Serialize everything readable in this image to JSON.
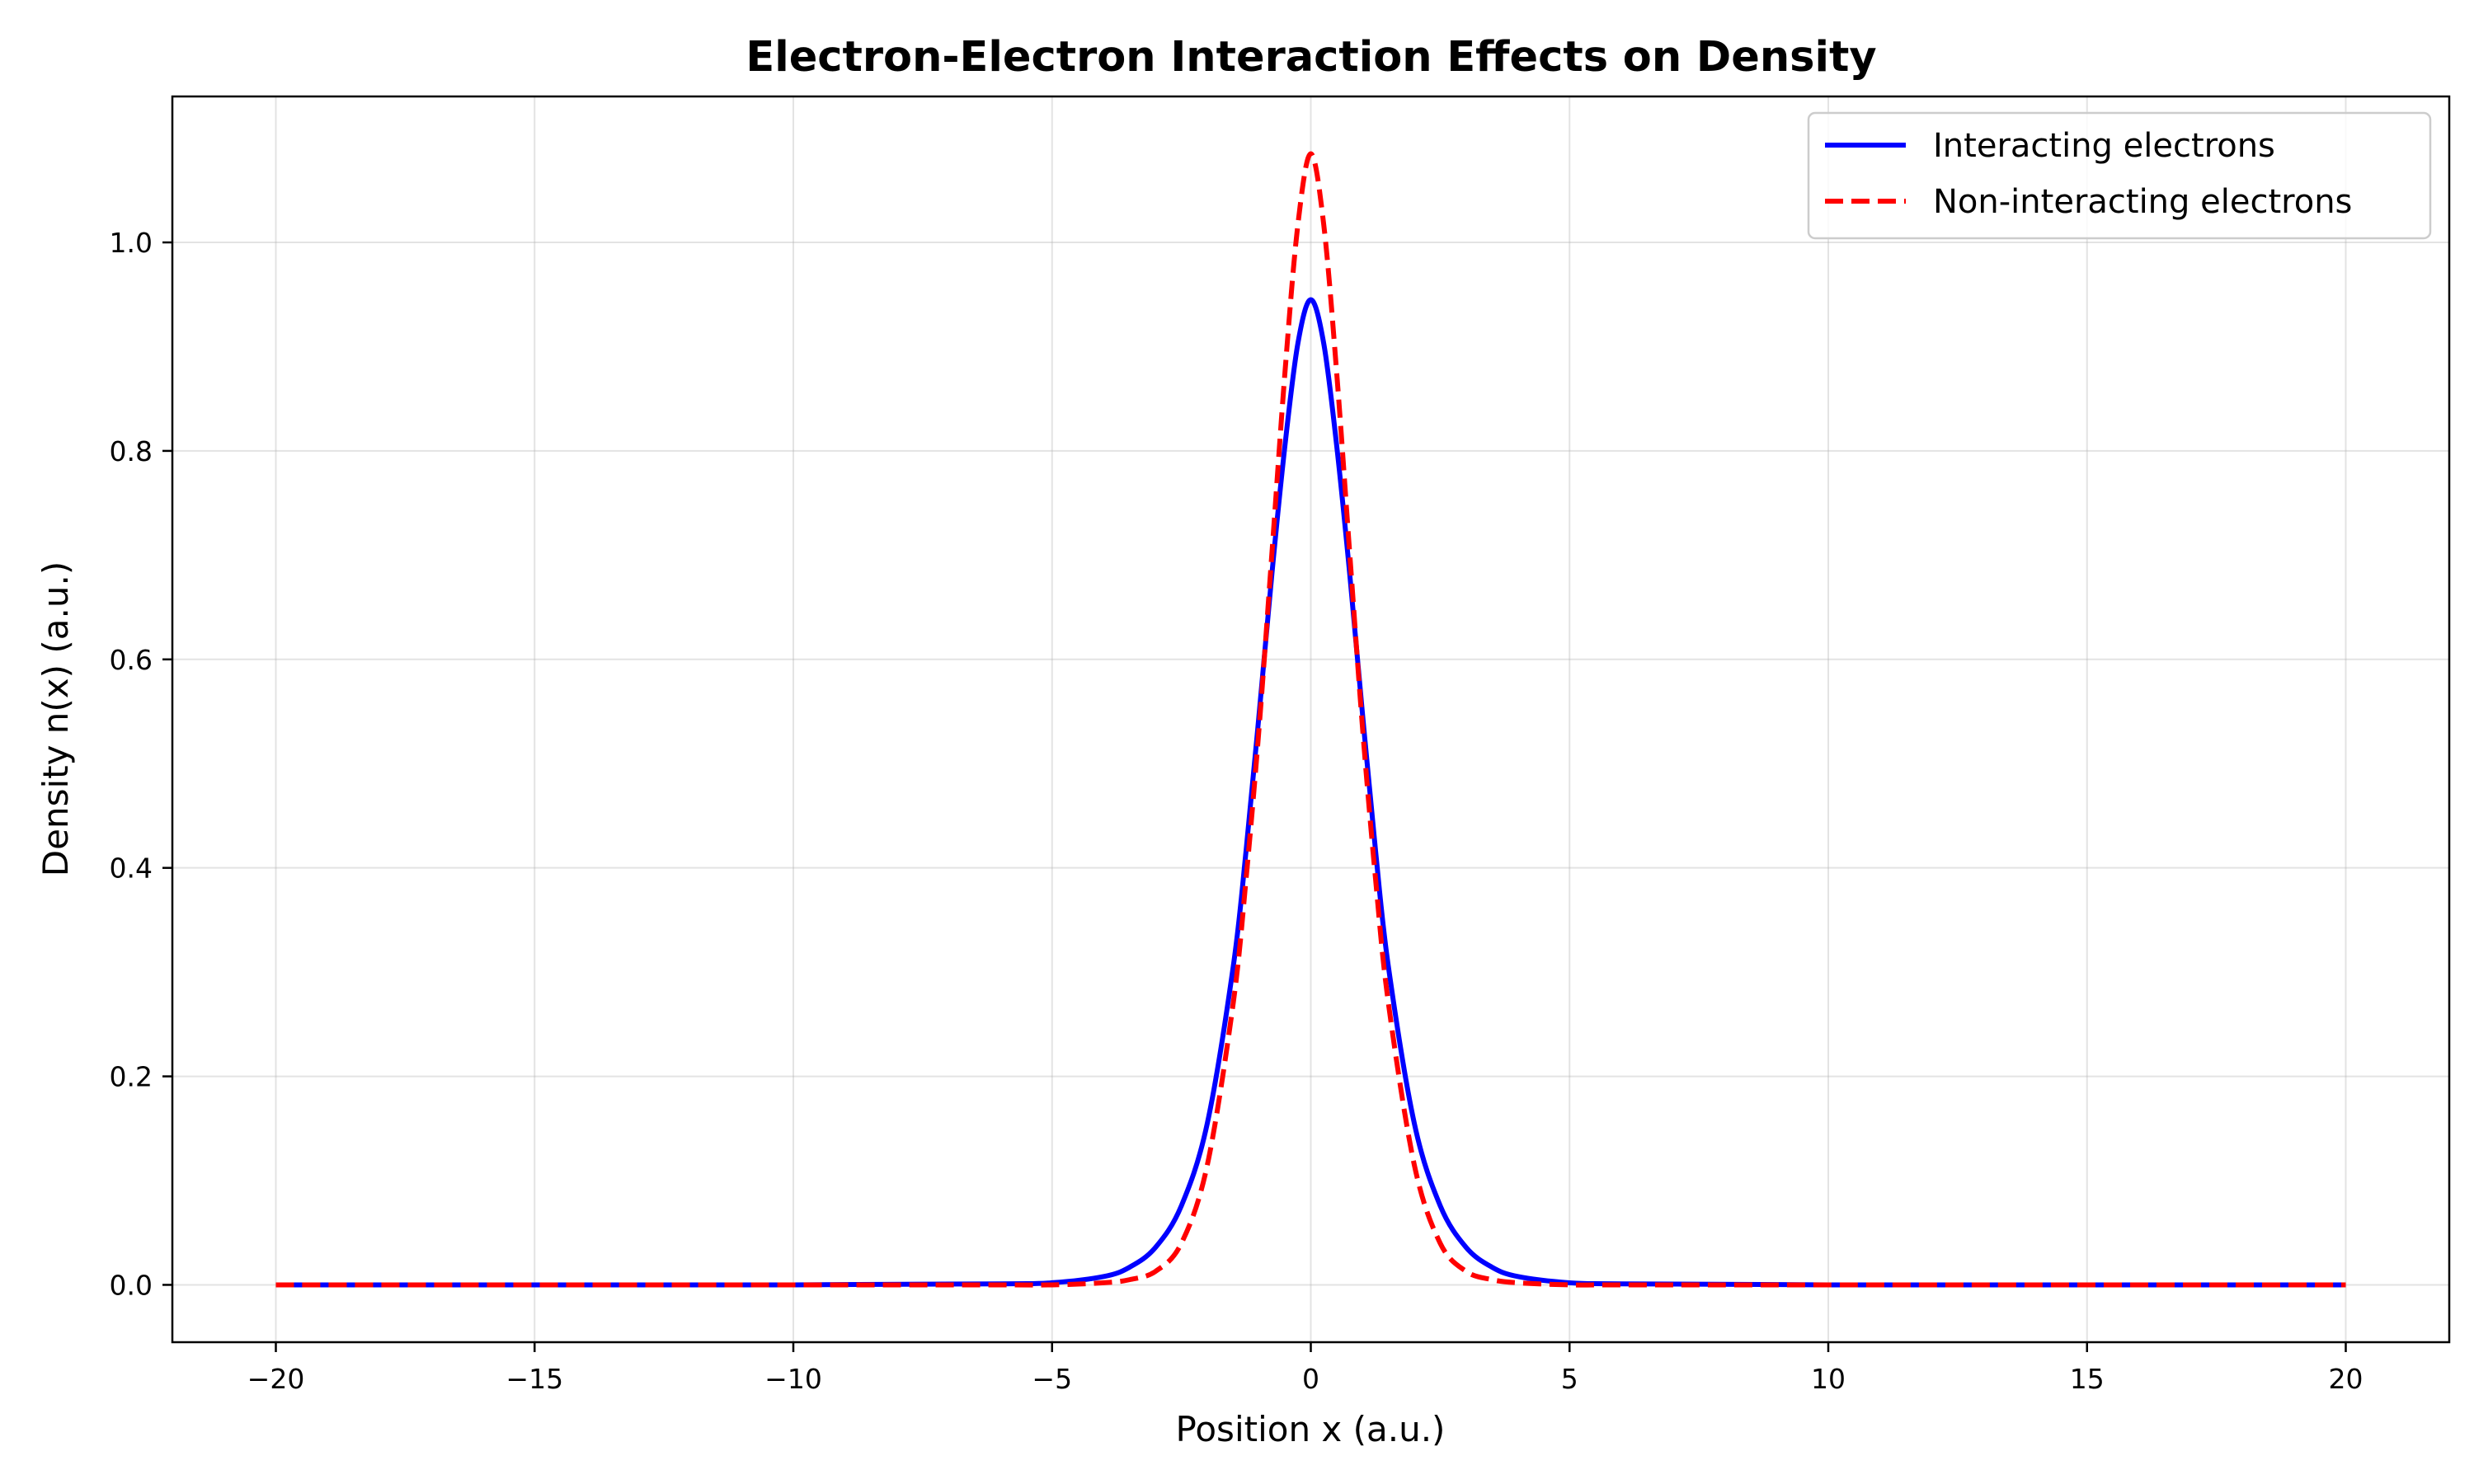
{
  "chart_data": {
    "type": "line",
    "title": "Electron-Electron Interaction Effects on Density",
    "xlabel": "Position x (a.u.)",
    "ylabel": "Density n(x) (a.u.)",
    "xlim": [
      -22,
      22
    ],
    "ylim": [
      -0.055,
      1.14
    ],
    "x_ticks": [
      -20,
      -15,
      -10,
      -5,
      0,
      5,
      10,
      15,
      20
    ],
    "x_tick_labels": [
      "−20",
      "−15",
      "−10",
      "−5",
      "0",
      "5",
      "10",
      "15",
      "20"
    ],
    "y_ticks": [
      0.0,
      0.2,
      0.4,
      0.6,
      0.8,
      1.0
    ],
    "y_tick_labels": [
      "0.0",
      "0.2",
      "0.4",
      "0.6",
      "0.8",
      "1.0"
    ],
    "grid": true,
    "legend_position": "top-right",
    "series": [
      {
        "name": "Interacting electrons",
        "color": "#0000ff",
        "style": "solid",
        "x": [
          -20,
          -10,
          -6,
          -5,
          -4,
          -3.5,
          -3,
          -2.5,
          -2,
          -1.5,
          -1.25,
          -1,
          -0.75,
          -0.5,
          -0.25,
          0,
          0.25,
          0.5,
          0.75,
          1,
          1.25,
          1.5,
          2,
          2.5,
          3,
          3.5,
          4,
          5,
          6,
          10,
          20
        ],
        "y": [
          0.0,
          0.0,
          0.001,
          0.002,
          0.008,
          0.017,
          0.036,
          0.076,
          0.155,
          0.305,
          0.417,
          0.547,
          0.683,
          0.805,
          0.903,
          0.945,
          0.903,
          0.805,
          0.683,
          0.547,
          0.417,
          0.305,
          0.155,
          0.076,
          0.036,
          0.017,
          0.008,
          0.002,
          0.001,
          0.0,
          0.0
        ]
      },
      {
        "name": "Non-interacting electrons",
        "color": "#ff0000",
        "style": "dashed",
        "x": [
          -20,
          -10,
          -6,
          -5,
          -4,
          -3.5,
          -3,
          -2.5,
          -2,
          -1.5,
          -1.25,
          -1,
          -0.75,
          -0.5,
          -0.25,
          0,
          0.25,
          0.5,
          0.75,
          1,
          1.25,
          1.5,
          2,
          2.5,
          3,
          3.5,
          4,
          5,
          6,
          10,
          20
        ],
        "y": [
          0.0,
          0.0,
          0.0,
          0.0,
          0.002,
          0.005,
          0.013,
          0.04,
          0.115,
          0.27,
          0.39,
          0.534,
          0.703,
          0.875,
          1.017,
          1.085,
          1.017,
          0.875,
          0.703,
          0.534,
          0.39,
          0.27,
          0.115,
          0.04,
          0.013,
          0.005,
          0.002,
          0.0,
          0.0,
          0.0,
          0.0
        ]
      }
    ]
  }
}
